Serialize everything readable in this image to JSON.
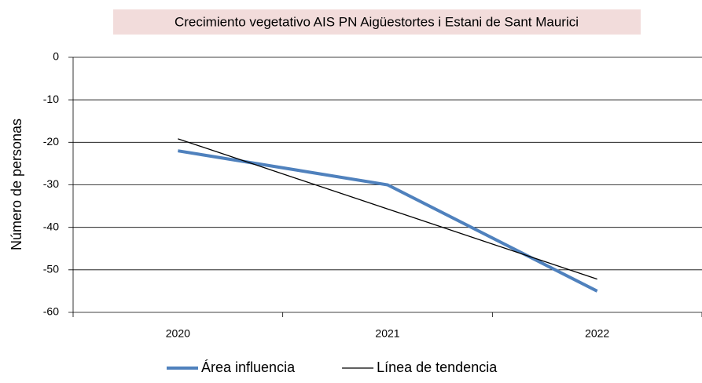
{
  "chart_data": {
    "type": "line",
    "title": "Crecimiento vegetativo AIS PN Aigüestortes i Estani de Sant Maurici",
    "y_label": "Número de personas",
    "categories": [
      "2020",
      "2021",
      "2022"
    ],
    "series": [
      {
        "name": "Área influencia",
        "color": "#4f81bd",
        "width": 4,
        "values": [
          -22,
          -30,
          -55
        ]
      },
      {
        "name": "Línea de tendencia",
        "color": "#000000",
        "width": 1.3,
        "values": [
          -19.17,
          -35.67,
          -52.17
        ]
      }
    ],
    "ylim": [
      -60,
      0
    ],
    "yticks": [
      0,
      -10,
      -20,
      -30,
      -40,
      -50,
      -60
    ],
    "grid": true,
    "legend": "bottom"
  }
}
